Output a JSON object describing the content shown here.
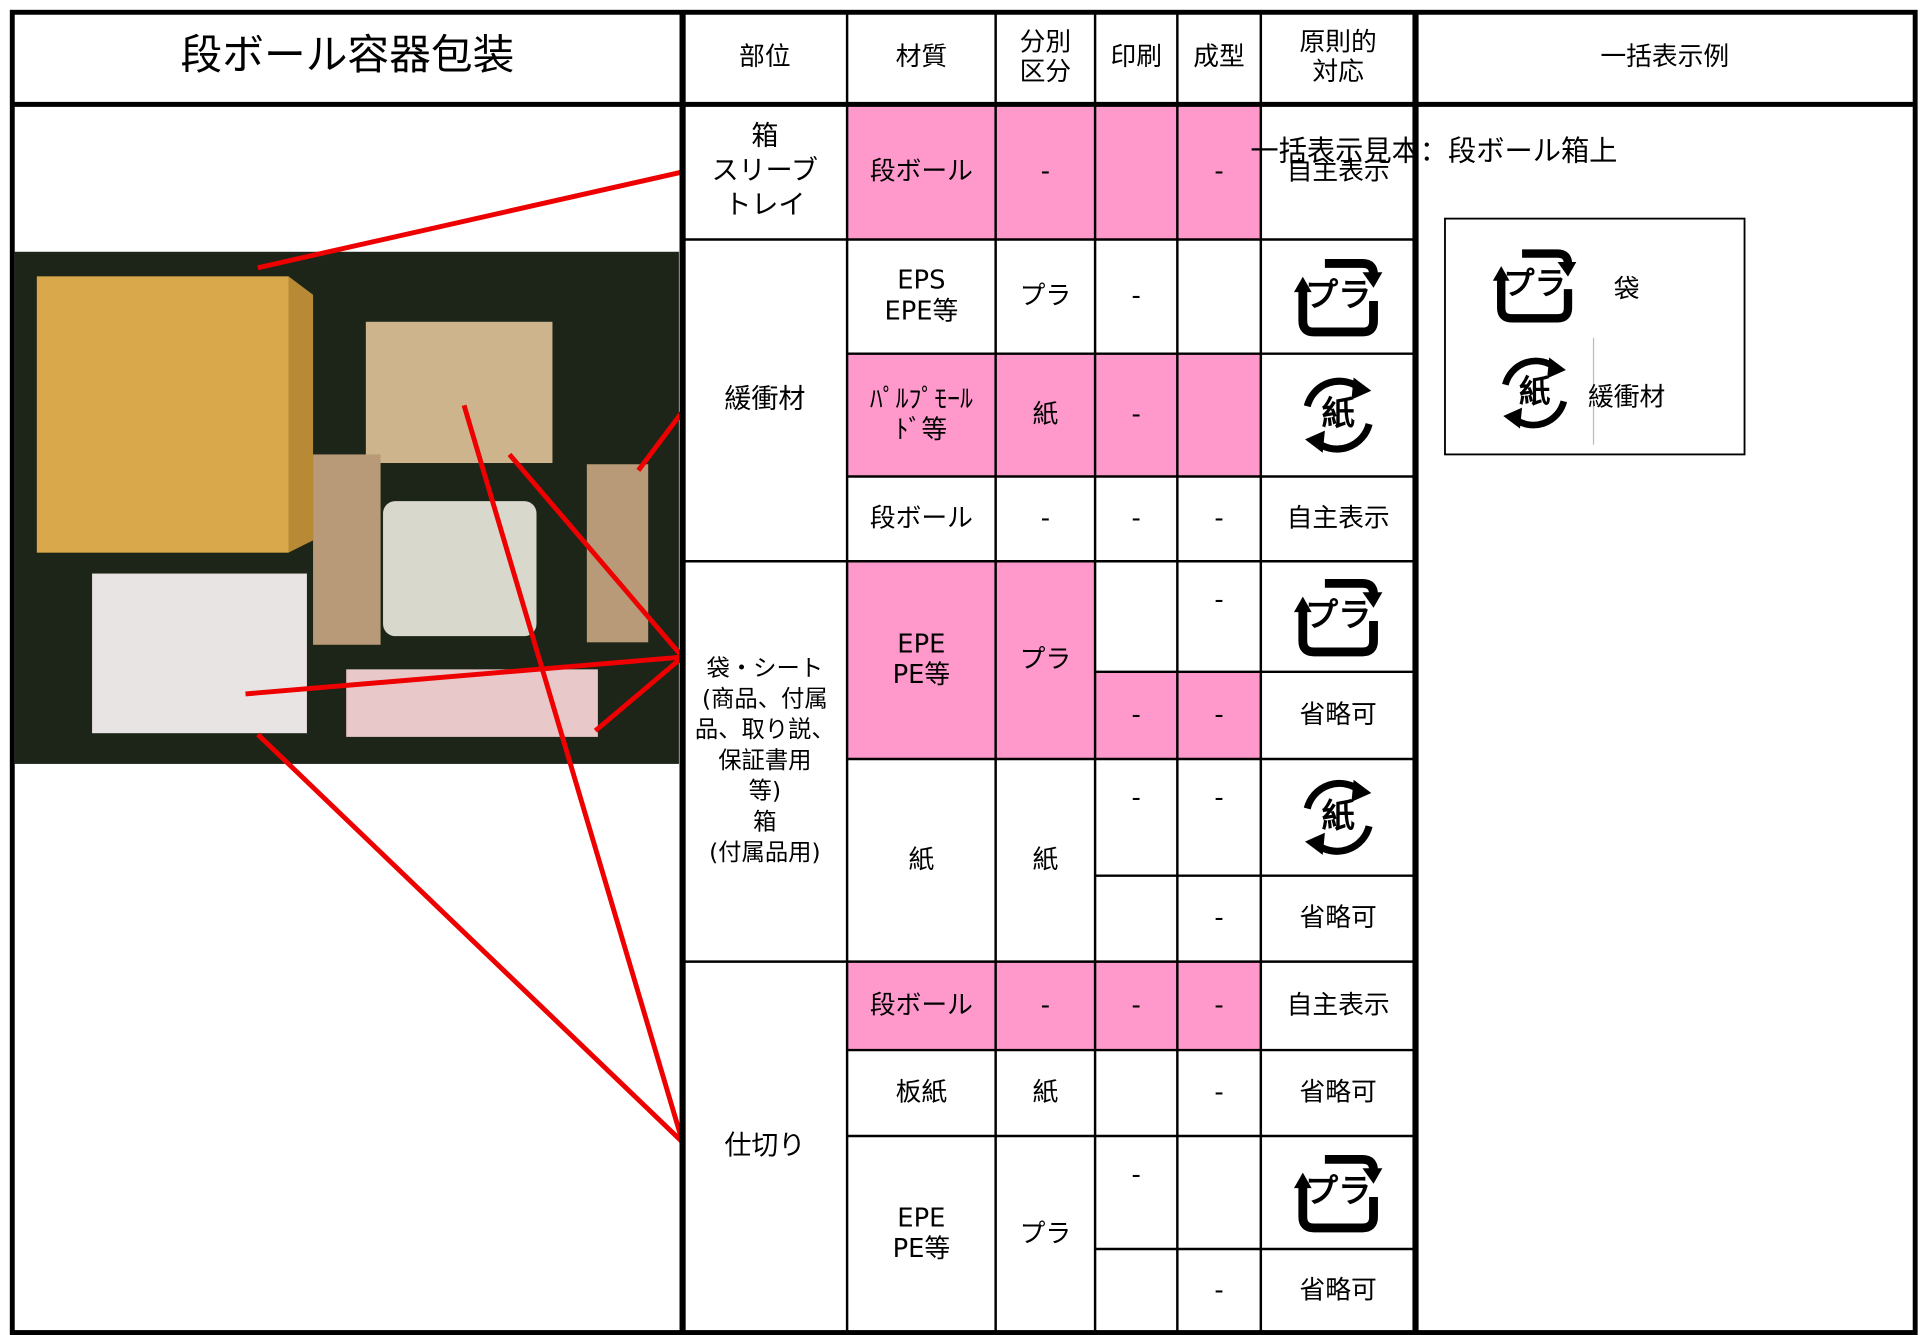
{
  "header": {
    "title": "段ボール容器包装",
    "columns": [
      [
        "部位"
      ],
      [
        "材質"
      ],
      [
        "分別",
        "区分"
      ],
      [
        "印刷"
      ],
      [
        "成型"
      ],
      [
        "原則的",
        "対応"
      ],
      [
        "一括表示例"
      ]
    ]
  },
  "highlight_color": "#ff99cc",
  "parts": [
    {
      "label": [
        "箱",
        "スリーブ",
        "トレイ"
      ],
      "groups": [
        {
          "material": [
            "段ボール"
          ],
          "class": "-",
          "highlight": [
            true,
            true
          ],
          "subs": [
            {
              "print": null,
              "mold": "-",
              "response": "自主表示",
              "highlight": [
                true,
                true
              ]
            }
          ]
        }
      ]
    },
    {
      "label": [
        "緩衝材"
      ],
      "groups": [
        {
          "material": [
            "EPS",
            "EPE等"
          ],
          "class": "プラ",
          "highlight": [
            false,
            false
          ],
          "subs": [
            {
              "print": "-",
              "mold": null,
              "response": {
                "mark": "プラ"
              },
              "highlight": [
                false,
                false
              ]
            }
          ]
        },
        {
          "material": [
            "ﾊﾟﾙﾌﾟﾓｰﾙ",
            "ﾄﾞ等"
          ],
          "class": "紙",
          "highlight": [
            true,
            true
          ],
          "subs": [
            {
              "print": "-",
              "mold": null,
              "response": {
                "mark": "紙"
              },
              "highlight": [
                true,
                true
              ]
            }
          ]
        },
        {
          "material": [
            "段ボール"
          ],
          "class": "-",
          "highlight": [
            false,
            false
          ],
          "subs": [
            {
              "print": "-",
              "mold": "-",
              "response": "自主表示",
              "highlight": [
                false,
                false
              ]
            }
          ]
        }
      ]
    },
    {
      "label": [
        "袋・シート",
        "(商品、付属",
        "品、取り説、",
        "保証書用",
        "等)",
        "箱",
        "(付属品用)"
      ],
      "groups": [
        {
          "material": [
            "EPE",
            "PE等"
          ],
          "class": "プラ",
          "highlight": [
            true,
            true
          ],
          "subs": [
            {
              "print": null,
              "mold": "-",
              "response": {
                "mark": "プラ"
              },
              "highlight": [
                false,
                false
              ]
            },
            {
              "print": "-",
              "mold": "-",
              "response": "省略可",
              "highlight": [
                true,
                true
              ]
            }
          ]
        },
        {
          "material": [
            "紙"
          ],
          "class": "紙",
          "highlight": [
            false,
            false
          ],
          "subs": [
            {
              "print": "-",
              "mold": "-",
              "response": {
                "mark": "紙"
              },
              "highlight": [
                false,
                false
              ]
            },
            {
              "print": null,
              "mold": "-",
              "response": "省略可",
              "highlight": [
                false,
                false
              ]
            }
          ]
        }
      ]
    },
    {
      "label": [
        "仕切り"
      ],
      "groups": [
        {
          "material": [
            "段ボール"
          ],
          "class": "-",
          "highlight": [
            true,
            true
          ],
          "subs": [
            {
              "print": "-",
              "mold": "-",
              "response": "自主表示",
              "highlight": [
                true,
                true
              ]
            }
          ]
        },
        {
          "material": [
            "板紙"
          ],
          "class": "紙",
          "highlight": [
            false,
            false
          ],
          "subs": [
            {
              "print": null,
              "mold": "-",
              "response": "省略可",
              "highlight": [
                false,
                false
              ]
            }
          ]
        },
        {
          "material": [
            "EPE",
            "PE等"
          ],
          "class": "プラ",
          "highlight": [
            false,
            false
          ],
          "subs": [
            {
              "print": "-",
              "mold": null,
              "response": {
                "mark": "プラ"
              },
              "highlight": [
                false,
                false
              ]
            },
            {
              "print": null,
              "mold": "-",
              "response": "省略可",
              "highlight": [
                false,
                false
              ]
            }
          ]
        }
      ]
    }
  ],
  "sample": {
    "title": "一括表示見本：段ボール箱上",
    "items": [
      {
        "mark": "プラ",
        "label": "袋"
      },
      {
        "mark": "紙",
        "label": "緩衝材"
      }
    ]
  }
}
